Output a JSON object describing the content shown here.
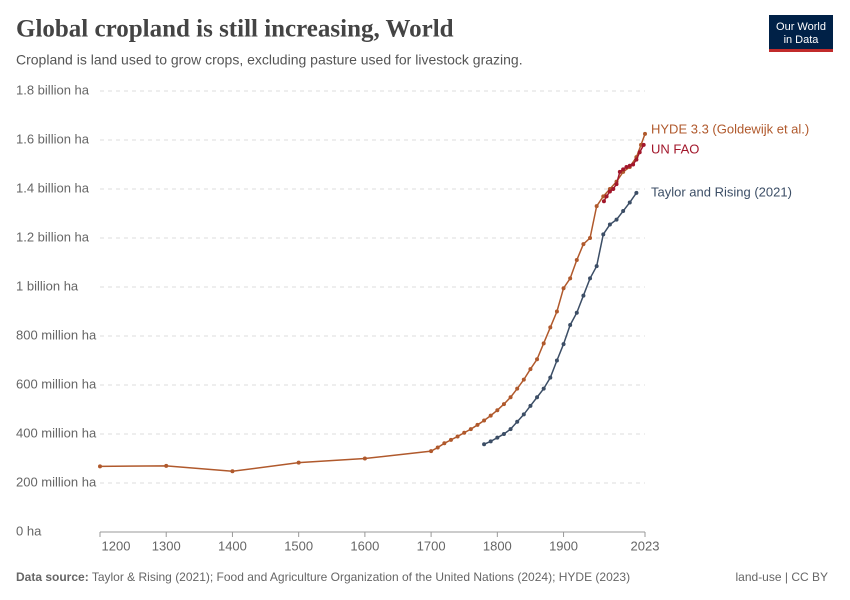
{
  "chart_data": {
    "type": "line",
    "title": "Global cropland is still increasing, World",
    "subtitle": "Cropland is land used to grow crops, excluding pasture used for livestock grazing.",
    "logo": [
      "Our World",
      "in Data"
    ],
    "source_label": "Data source:",
    "source": "Taylor & Rising (2021); Food and Agriculture Organization of the United Nations (2024); HYDE (2023)",
    "license": "land-use | CC BY",
    "xlim": [
      1200,
      2023
    ],
    "xticks": [
      1200,
      1300,
      1400,
      1500,
      1600,
      1700,
      1800,
      1900,
      2023
    ],
    "ylim": [
      0,
      1800000000
    ],
    "yticks": [
      {
        "value": 0,
        "label": "0 ha"
      },
      {
        "value": 200000000,
        "label": "200 million ha"
      },
      {
        "value": 400000000,
        "label": "400 million ha"
      },
      {
        "value": 600000000,
        "label": "600 million ha"
      },
      {
        "value": 800000000,
        "label": "800 million ha"
      },
      {
        "value": 1000000000,
        "label": "1 billion ha"
      },
      {
        "value": 1200000000,
        "label": "1.2 billion ha"
      },
      {
        "value": 1400000000,
        "label": "1.4 billion ha"
      },
      {
        "value": 1600000000,
        "label": "1.6 billion ha"
      },
      {
        "value": 1800000000,
        "label": "1.8 billion ha"
      }
    ],
    "grid": true,
    "series": [
      {
        "name": "HYDE 3.3 (Goldewijk et al.)",
        "color": "#b0592c",
        "x": [
          1200,
          1300,
          1400,
          1500,
          1600,
          1700,
          1710,
          1720,
          1730,
          1740,
          1750,
          1760,
          1770,
          1780,
          1790,
          1800,
          1810,
          1820,
          1830,
          1840,
          1850,
          1860,
          1870,
          1880,
          1890,
          1900,
          1910,
          1920,
          1930,
          1940,
          1950,
          1960,
          1970,
          1980,
          1990,
          2000,
          2010,
          2017,
          2023
        ],
        "values": [
          268000000,
          270000000,
          248000000,
          283000000,
          300000000,
          330000000,
          345000000,
          362000000,
          376000000,
          390000000,
          405000000,
          420000000,
          437000000,
          455000000,
          475000000,
          497000000,
          522000000,
          550000000,
          585000000,
          622000000,
          665000000,
          705000000,
          770000000,
          835000000,
          900000000,
          995000000,
          1035000000,
          1110000000,
          1175000000,
          1200000000,
          1330000000,
          1370000000,
          1400000000,
          1430000000,
          1470000000,
          1490000000,
          1530000000,
          1580000000,
          1625000000
        ]
      },
      {
        "name": "UN FAO",
        "color": "#a2172b",
        "x": [
          1961,
          1965,
          1970,
          1975,
          1980,
          1985,
          1990,
          1995,
          2000,
          2005,
          2010,
          2015,
          2021
        ],
        "values": [
          1350000000,
          1370000000,
          1390000000,
          1400000000,
          1420000000,
          1470000000,
          1480000000,
          1490000000,
          1495000000,
          1500000000,
          1520000000,
          1550000000,
          1580000000
        ]
      },
      {
        "name": "Taylor and Rising (2021)",
        "color": "#3c4e66",
        "x": [
          1780,
          1790,
          1800,
          1810,
          1820,
          1830,
          1840,
          1850,
          1860,
          1870,
          1880,
          1890,
          1900,
          1910,
          1920,
          1930,
          1940,
          1950,
          1960,
          1970,
          1980,
          1990,
          2000,
          2010
        ],
        "values": [
          358000000,
          370000000,
          385000000,
          400000000,
          420000000,
          450000000,
          480000000,
          515000000,
          550000000,
          585000000,
          630000000,
          700000000,
          767000000,
          845000000,
          895000000,
          965000000,
          1035000000,
          1085000000,
          1215000000,
          1255000000,
          1275000000,
          1310000000,
          1345000000,
          1384000000
        ]
      }
    ]
  }
}
